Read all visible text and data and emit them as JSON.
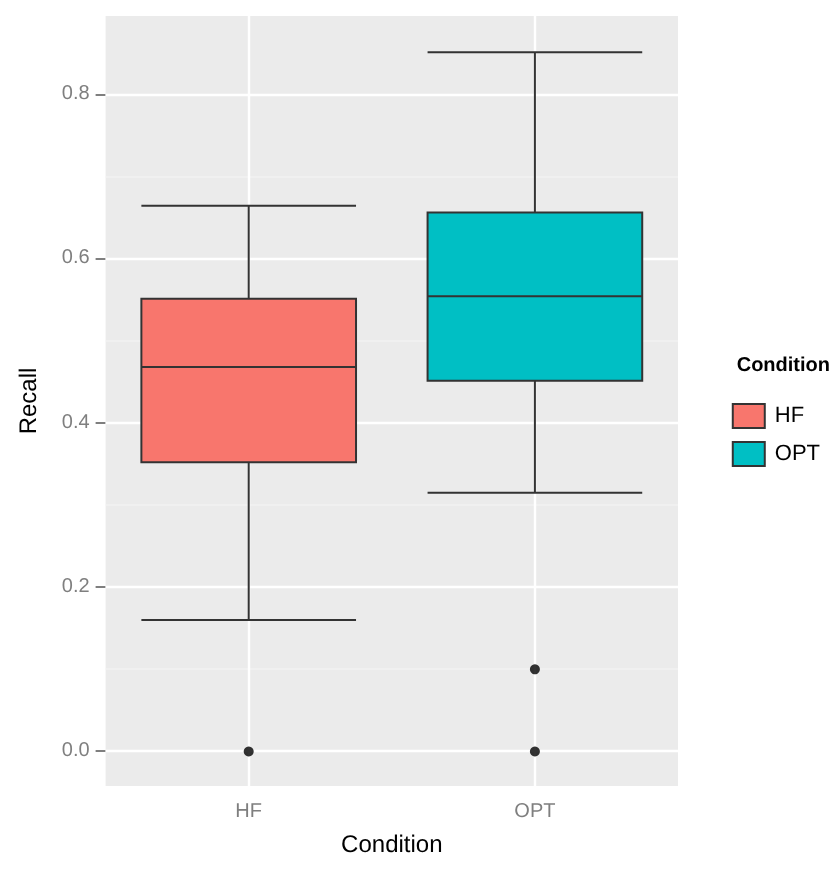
{
  "chart_data": {
    "type": "box",
    "xlabel": "Condition",
    "ylabel": "Recall",
    "legend_title": "Condition",
    "categories": [
      "HF",
      "OPT"
    ],
    "series": [
      {
        "name": "HF",
        "color": "#f8766d",
        "boxes": [
          {
            "low": 0.16,
            "q1": 0.352,
            "median": 0.468,
            "q3": 0.551,
            "high": 0.664,
            "outliers": [
              0
            ]
          },
          null
        ]
      },
      {
        "name": "OPT",
        "color": "#00bfc4",
        "boxes": [
          null,
          {
            "low": 0.315,
            "q1": 0.451,
            "median": 0.554,
            "q3": 0.656,
            "high": 0.851,
            "outliers": [
              0.1,
              0
            ]
          }
        ]
      }
    ],
    "ylim": [
      -0.042,
      0.895
    ],
    "yticks": [
      {
        "value": 0,
        "label": "0.0"
      },
      0.2,
      0.4,
      0.6,
      0.8
    ],
    "grid": true,
    "legend": "right"
  }
}
